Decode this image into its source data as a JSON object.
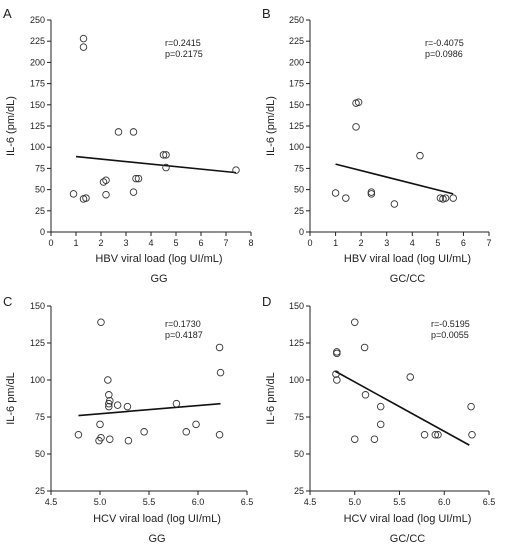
{
  "chart_data": [
    {
      "panel": "A",
      "type": "scatter",
      "subtitle": "GG",
      "xlabel": "HBV viral load (log UI/mL)",
      "ylabel": "IL-6 (pm/dL)",
      "xlim": [
        0,
        8
      ],
      "ylim": [
        0,
        250
      ],
      "xticks": [
        "0",
        "1",
        "2",
        "3",
        "4",
        "5",
        "6",
        "7",
        "8"
      ],
      "yticks": [
        "0",
        "25",
        "50",
        "75",
        "100",
        "125",
        "150",
        "175",
        "200",
        "225",
        "250"
      ],
      "stats": [
        "r=0.2415",
        "p=0.2175"
      ],
      "points": [
        [
          1.3,
          228
        ],
        [
          1.3,
          218
        ],
        [
          0.9,
          45
        ],
        [
          1.3,
          39
        ],
        [
          1.4,
          40
        ],
        [
          2.1,
          59
        ],
        [
          2.2,
          61
        ],
        [
          2.2,
          44
        ],
        [
          2.7,
          118
        ],
        [
          3.3,
          118
        ],
        [
          3.3,
          47
        ],
        [
          3.4,
          63
        ],
        [
          3.5,
          63
        ],
        [
          4.5,
          91
        ],
        [
          4.6,
          91
        ],
        [
          4.6,
          76
        ],
        [
          7.4,
          73
        ]
      ],
      "regression": [
        [
          1.0,
          89
        ],
        [
          7.4,
          70
        ]
      ]
    },
    {
      "panel": "B",
      "type": "scatter",
      "subtitle": "GC/CC",
      "xlabel": "HBV viral load (log UI/mL)",
      "ylabel": "IL-6 (pm/dL)",
      "xlim": [
        0,
        7
      ],
      "ylim": [
        0,
        250
      ],
      "xticks": [
        "0",
        "1",
        "2",
        "3",
        "4",
        "5",
        "6",
        "7"
      ],
      "yticks": [
        "0",
        "25",
        "50",
        "75",
        "100",
        "125",
        "150",
        "175",
        "200",
        "225",
        "250"
      ],
      "stats": [
        "r=-0.4075",
        "p=0.0986"
      ],
      "points": [
        [
          1.0,
          46
        ],
        [
          1.4,
          40
        ],
        [
          1.8,
          152
        ],
        [
          1.9,
          153
        ],
        [
          1.8,
          124
        ],
        [
          2.4,
          47
        ],
        [
          2.4,
          45
        ],
        [
          3.3,
          33
        ],
        [
          4.3,
          90
        ],
        [
          5.1,
          40
        ],
        [
          5.2,
          39
        ],
        [
          5.3,
          40
        ],
        [
          5.6,
          40
        ]
      ],
      "regression": [
        [
          1.0,
          80
        ],
        [
          5.6,
          45
        ]
      ]
    },
    {
      "panel": "C",
      "type": "scatter",
      "subtitle": "GG",
      "xlabel": "HCV viral load (log UI/mL)",
      "ylabel": "IL-6 pm/dL",
      "xlim": [
        4.5,
        6.5
      ],
      "ylim": [
        25,
        150
      ],
      "xticks": [
        "4.5",
        "5.0",
        "5.5",
        "6.0",
        "6.5"
      ],
      "yticks": [
        "25",
        "50",
        "75",
        "100",
        "125",
        "150"
      ],
      "stats": [
        "r=0.1730",
        "p=0.4187"
      ],
      "points": [
        [
          4.78,
          63
        ],
        [
          4.99,
          59
        ],
        [
          5.01,
          61
        ],
        [
          5.0,
          70
        ],
        [
          5.01,
          139
        ],
        [
          5.08,
          100
        ],
        [
          5.09,
          90
        ],
        [
          5.1,
          86
        ],
        [
          5.09,
          84
        ],
        [
          5.09,
          82
        ],
        [
          5.1,
          60
        ],
        [
          5.18,
          83
        ],
        [
          5.28,
          82
        ],
        [
          5.29,
          59
        ],
        [
          5.45,
          65
        ],
        [
          5.78,
          84
        ],
        [
          5.88,
          65
        ],
        [
          5.98,
          70
        ],
        [
          6.22,
          122
        ],
        [
          6.23,
          105
        ],
        [
          6.22,
          63
        ]
      ],
      "regression": [
        [
          4.78,
          76
        ],
        [
          6.23,
          84
        ]
      ]
    },
    {
      "panel": "D",
      "type": "scatter",
      "subtitle": "GC/CC",
      "xlabel": "HCV viral load (log UI/mL)",
      "ylabel": "IL-6 pm/dL",
      "xlim": [
        4.5,
        6.5
      ],
      "ylim": [
        25,
        150
      ],
      "xticks": [
        "4.5",
        "5.0",
        "5.5",
        "6.0",
        "6.5"
      ],
      "yticks": [
        "25",
        "50",
        "75",
        "100",
        "125",
        "150"
      ],
      "stats": [
        "r=-0.5195",
        "p=0.0055"
      ],
      "points": [
        [
          4.8,
          119
        ],
        [
          4.8,
          118
        ],
        [
          4.79,
          104
        ],
        [
          4.8,
          100
        ],
        [
          5.0,
          139
        ],
        [
          5.11,
          122
        ],
        [
          5.12,
          90
        ],
        [
          5.0,
          60
        ],
        [
          5.22,
          60
        ],
        [
          5.29,
          82
        ],
        [
          5.29,
          70
        ],
        [
          5.62,
          102
        ],
        [
          5.78,
          63
        ],
        [
          5.9,
          63
        ],
        [
          5.93,
          63
        ],
        [
          6.3,
          82
        ],
        [
          6.31,
          63
        ]
      ],
      "regression": [
        [
          4.78,
          106
        ],
        [
          6.28,
          56
        ]
      ]
    }
  ]
}
